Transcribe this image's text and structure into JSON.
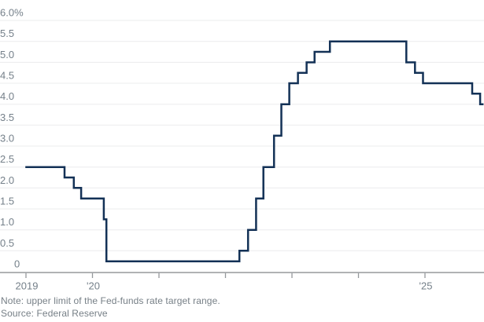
{
  "chart": {
    "note": "Note: upper limit of the Fed-funds rate target range.",
    "source": "Source: Federal Reserve"
  },
  "chart_data": {
    "type": "line",
    "subtype": "step",
    "title": "",
    "xlabel": "",
    "ylabel": "",
    "unit": "%",
    "xlim_years": [
      2018.99,
      2025.95
    ],
    "ylim": [
      0,
      6
    ],
    "grid": "horizontal",
    "legend": "none",
    "line_color": "#133156",
    "grid_color": "#ebeced",
    "axis_color": "#95989c",
    "label_color": "#75808a",
    "y_ticks": [
      {
        "v": 0,
        "label": "0"
      },
      {
        "v": 0.5,
        "label": "0.5"
      },
      {
        "v": 1,
        "label": "1.0"
      },
      {
        "v": 1.5,
        "label": "1.5"
      },
      {
        "v": 2,
        "label": "2.0"
      },
      {
        "v": 2.5,
        "label": "2.5"
      },
      {
        "v": 3,
        "label": "3.0"
      },
      {
        "v": 3.5,
        "label": "3.5"
      },
      {
        "v": 4,
        "label": "4.0"
      },
      {
        "v": 4.5,
        "label": "4.5"
      },
      {
        "v": 5,
        "label": "5.0"
      },
      {
        "v": 5.5,
        "label": "5.5"
      },
      {
        "v": 6,
        "label": "6.0%"
      }
    ],
    "x_ticks": [
      {
        "t": 2019,
        "label": "2019"
      },
      {
        "t": 2020,
        "label": "'20"
      },
      {
        "t": 2021,
        "label": ""
      },
      {
        "t": 2022,
        "label": ""
      },
      {
        "t": 2023,
        "label": ""
      },
      {
        "t": 2024,
        "label": ""
      },
      {
        "t": 2025,
        "label": "'25"
      }
    ],
    "series": [
      {
        "name": "Fed-funds rate target range, upper limit",
        "steps": [
          {
            "date": "2019-01",
            "t": 2018.99,
            "value": 2.5
          },
          {
            "date": "2019-08",
            "t": 2019.58,
            "value": 2.25
          },
          {
            "date": "2019-09",
            "t": 2019.72,
            "value": 2.0
          },
          {
            "date": "2019-10",
            "t": 2019.83,
            "value": 1.75
          },
          {
            "date": "2020-03",
            "t": 2020.17,
            "value": 1.25
          },
          {
            "date": "2020-03",
            "t": 2020.21,
            "value": 0.25
          },
          {
            "date": "2022-03",
            "t": 2022.21,
            "value": 0.5
          },
          {
            "date": "2022-05",
            "t": 2022.34,
            "value": 1.0
          },
          {
            "date": "2022-06",
            "t": 2022.46,
            "value": 1.75
          },
          {
            "date": "2022-07",
            "t": 2022.57,
            "value": 2.5
          },
          {
            "date": "2022-09",
            "t": 2022.73,
            "value": 3.25
          },
          {
            "date": "2022-11",
            "t": 2022.84,
            "value": 4.0
          },
          {
            "date": "2022-12",
            "t": 2022.96,
            "value": 4.5
          },
          {
            "date": "2023-02",
            "t": 2023.09,
            "value": 4.75
          },
          {
            "date": "2023-03",
            "t": 2023.22,
            "value": 5.0
          },
          {
            "date": "2023-05",
            "t": 2023.34,
            "value": 5.25
          },
          {
            "date": "2023-07",
            "t": 2023.57,
            "value": 5.5
          },
          {
            "date": "2024-09",
            "t": 2024.72,
            "value": 5.0
          },
          {
            "date": "2024-11",
            "t": 2024.85,
            "value": 4.75
          },
          {
            "date": "2024-12",
            "t": 2024.97,
            "value": 4.5
          },
          {
            "date": "2025-09",
            "t": 2025.71,
            "value": 4.25
          },
          {
            "date": "2025-10",
            "t": 2025.83,
            "value": 4.0
          }
        ],
        "t_end": 2025.88
      }
    ]
  }
}
